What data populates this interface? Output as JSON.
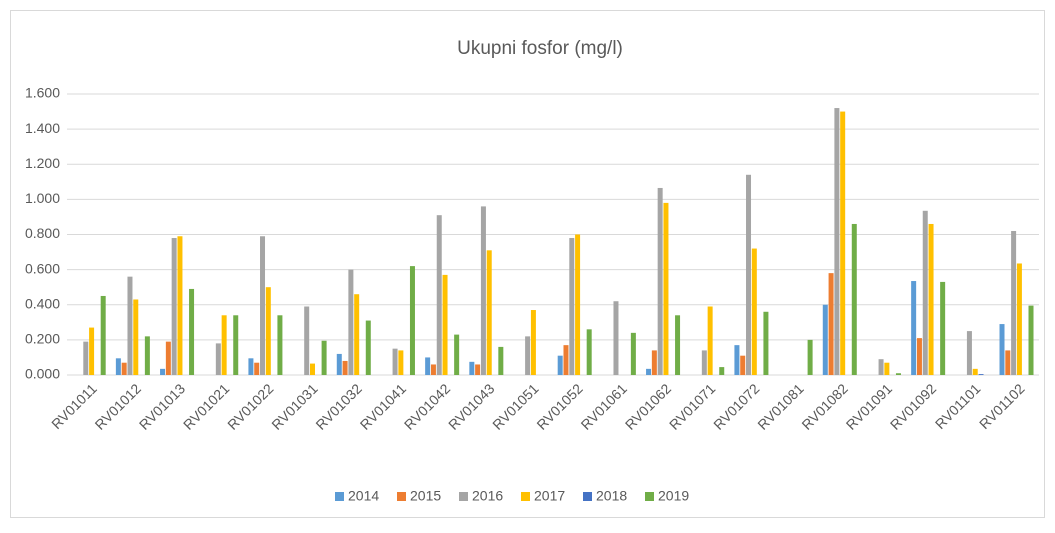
{
  "chart_data": {
    "type": "bar",
    "title": "Ukupni fosfor (mg/l)",
    "categories": [
      "RV01011",
      "RV01012",
      "RV01013",
      "RV01021",
      "RV01022",
      "RV01031",
      "RV01032",
      "RV01041",
      "RV01042",
      "RV01043",
      "RV01051",
      "RV01052",
      "RV01061",
      "RV01062",
      "RV01071",
      "RV01072",
      "RV01081",
      "RV01082",
      "RV01091",
      "RV01092",
      "RV01101",
      "RV01102"
    ],
    "series": [
      {
        "name": "2014",
        "color": "#5b9bd5",
        "values": [
          null,
          0.095,
          0.035,
          null,
          0.095,
          null,
          0.12,
          null,
          0.1,
          0.075,
          null,
          0.11,
          null,
          0.035,
          null,
          0.17,
          null,
          0.4,
          null,
          0.535,
          null,
          0.29
        ]
      },
      {
        "name": "2015",
        "color": "#ed7d31",
        "values": [
          null,
          0.07,
          0.19,
          null,
          0.07,
          null,
          0.08,
          null,
          0.06,
          0.06,
          null,
          0.17,
          null,
          0.14,
          null,
          0.11,
          null,
          0.58,
          null,
          0.21,
          null,
          0.14
        ]
      },
      {
        "name": "2016",
        "color": "#a5a5a5",
        "values": [
          0.19,
          0.56,
          0.78,
          0.18,
          0.79,
          0.39,
          0.6,
          0.15,
          0.91,
          0.96,
          0.22,
          0.78,
          0.42,
          1.065,
          0.14,
          1.14,
          null,
          1.52,
          0.09,
          0.935,
          0.25,
          0.82
        ]
      },
      {
        "name": "2017",
        "color": "#ffc000",
        "values": [
          0.27,
          0.43,
          0.79,
          0.34,
          0.5,
          0.065,
          0.46,
          0.14,
          0.57,
          0.71,
          0.37,
          0.8,
          null,
          0.98,
          0.39,
          0.72,
          null,
          1.5,
          0.07,
          0.86,
          0.035,
          0.635
        ]
      },
      {
        "name": "2018",
        "color": "#4472c4",
        "values": [
          null,
          null,
          null,
          null,
          null,
          null,
          null,
          null,
          null,
          null,
          null,
          null,
          null,
          null,
          null,
          null,
          null,
          null,
          null,
          null,
          0.005,
          null
        ]
      },
      {
        "name": "2019",
        "color": "#70ad47",
        "values": [
          0.45,
          0.22,
          0.49,
          0.34,
          0.34,
          0.195,
          0.31,
          0.62,
          0.23,
          0.16,
          null,
          0.26,
          0.24,
          0.34,
          0.045,
          0.36,
          0.2,
          0.86,
          0.01,
          0.53,
          null,
          0.395
        ]
      }
    ],
    "ylim": [
      0,
      1.6
    ],
    "yticks": [
      {
        "value": 0,
        "label": "0.000"
      },
      {
        "value": 0.2,
        "label": "0.200"
      },
      {
        "value": 0.4,
        "label": "0.400"
      },
      {
        "value": 0.6,
        "label": "0.600"
      },
      {
        "value": 0.8,
        "label": "0.800"
      },
      {
        "value": 1.0,
        "label": "1.000"
      },
      {
        "value": 1.2,
        "label": "1.200"
      },
      {
        "value": 1.4,
        "label": "1.400"
      },
      {
        "value": 1.6,
        "label": "1.600"
      }
    ],
    "grid": true,
    "legend": "bottom"
  }
}
